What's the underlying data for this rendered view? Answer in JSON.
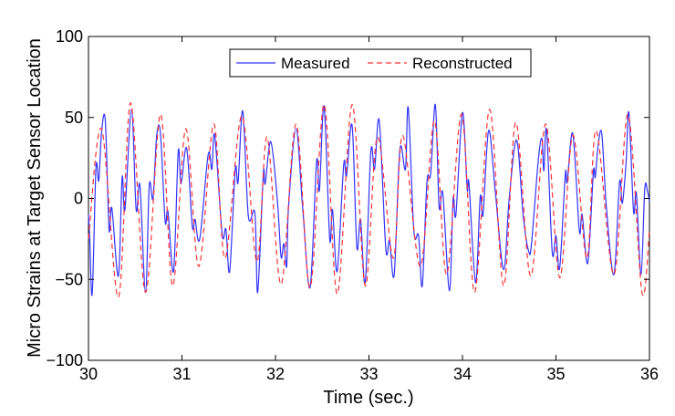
{
  "chart_data": {
    "type": "line",
    "title": "",
    "xlabel": "Time (sec.)",
    "ylabel": "Micro Strains at Target Sensor Location",
    "xlim": [
      30,
      36
    ],
    "ylim": [
      -100,
      100
    ],
    "xticks": [
      30,
      31,
      32,
      33,
      34,
      35,
      36
    ],
    "yticks": [
      -100,
      -50,
      0,
      50,
      100
    ],
    "ytick_labels": [
      "−100",
      "−50",
      "0",
      "50",
      "100"
    ],
    "grid": false,
    "legend_position": "top-center",
    "series": [
      {
        "name": "Measured",
        "color": "#3333ff",
        "style": "solid",
        "x": [
          30.0,
          30.013,
          30.04,
          30.08,
          30.11,
          30.14,
          30.18,
          30.22,
          30.25,
          30.32,
          30.36,
          30.39,
          30.46,
          30.51,
          30.55,
          30.61,
          30.65,
          30.69,
          30.73,
          30.77,
          30.82,
          30.85,
          30.91,
          30.96,
          30.99,
          31.05,
          31.11,
          31.14,
          31.19,
          31.28,
          31.32,
          31.35,
          31.43,
          31.47,
          31.51,
          31.57,
          31.6,
          31.65,
          31.71,
          31.78,
          31.81,
          31.87,
          31.89,
          31.95,
          32.02,
          32.06,
          32.09,
          32.12,
          32.14,
          32.22,
          32.29,
          32.37,
          32.44,
          32.47,
          32.52,
          32.58,
          32.61,
          32.66,
          32.73,
          32.76,
          32.82,
          32.87,
          32.91,
          32.96,
          33.02,
          33.06,
          33.11,
          33.18,
          33.22,
          33.27,
          33.33,
          33.39,
          33.42,
          33.48,
          33.53,
          33.57,
          33.62,
          33.66,
          33.71,
          33.75,
          33.79,
          33.86,
          33.9,
          33.93,
          34.0,
          34.05,
          34.07,
          34.14,
          34.19,
          34.22,
          34.28,
          34.35,
          34.44,
          34.5,
          34.58,
          34.65,
          34.71,
          34.74,
          34.81,
          34.85,
          34.87,
          34.9,
          34.96,
          35.0,
          35.04,
          35.1,
          35.12,
          35.18,
          35.25,
          35.28,
          35.34,
          35.4,
          35.42,
          35.45,
          35.49,
          35.54,
          35.62,
          35.68,
          35.71,
          35.75,
          35.78,
          35.83,
          35.86,
          35.91,
          35.95,
          35.98,
          36.0
        ],
        "y": [
          -10,
          -24,
          -59,
          19,
          11,
          41,
          48,
          -19,
          -6,
          -48,
          13,
          -7,
          55,
          -7,
          8,
          -58,
          8,
          0,
          39,
          40,
          -14,
          -8,
          -45,
          29,
          9,
          31,
          -17,
          -13,
          -25,
          27,
          18,
          39,
          -22,
          -19,
          -45,
          18,
          10,
          54,
          -11,
          -9,
          -58,
          15,
          9,
          35,
          -1,
          -36,
          -28,
          -42,
          -5,
          43,
          -5,
          -55,
          23,
          5,
          57,
          -25,
          -7,
          -45,
          21,
          14,
          45,
          -30,
          -13,
          -52,
          29,
          18,
          48,
          -31,
          -26,
          -47,
          30,
          18,
          56,
          -20,
          -23,
          -54,
          10,
          15,
          58,
          -5,
          3,
          -57,
          0,
          -10,
          53,
          6,
          9,
          -52,
          1,
          -10,
          42,
          5,
          -44,
          0,
          36,
          -11,
          -33,
          -27,
          23,
          37,
          17,
          42,
          -33,
          -23,
          -43,
          15,
          10,
          40,
          -20,
          -10,
          -40,
          16,
          13,
          32,
          40,
          -6,
          -47,
          10,
          -3,
          22,
          53,
          -8,
          3,
          -47,
          6,
          4,
          -2
        ]
      },
      {
        "name": "Reconstructed",
        "color": "#ff3333",
        "style": "dashed",
        "x": [
          30.0,
          30.14,
          30.32,
          30.45,
          30.61,
          30.77,
          30.9,
          31.04,
          31.18,
          31.34,
          31.46,
          31.64,
          31.8,
          31.91,
          32.06,
          32.22,
          32.37,
          32.52,
          32.66,
          32.82,
          32.96,
          33.09,
          33.26,
          33.36,
          33.55,
          33.7,
          33.83,
          33.99,
          34.13,
          34.29,
          34.44,
          34.57,
          34.73,
          34.89,
          35.04,
          35.18,
          35.33,
          35.43,
          35.62,
          35.77,
          35.92,
          36.0
        ],
        "y": [
          -25,
          43,
          -61,
          59,
          -58,
          52,
          -54,
          43,
          -42,
          46,
          -37,
          51,
          -39,
          38,
          -53,
          46,
          -55,
          58,
          -59,
          58,
          -54,
          38,
          -37,
          39,
          -42,
          48,
          -47,
          52,
          -58,
          55,
          -54,
          47,
          -48,
          46,
          -49,
          39,
          -37,
          42,
          -47,
          52,
          -58,
          -19
        ]
      }
    ]
  }
}
